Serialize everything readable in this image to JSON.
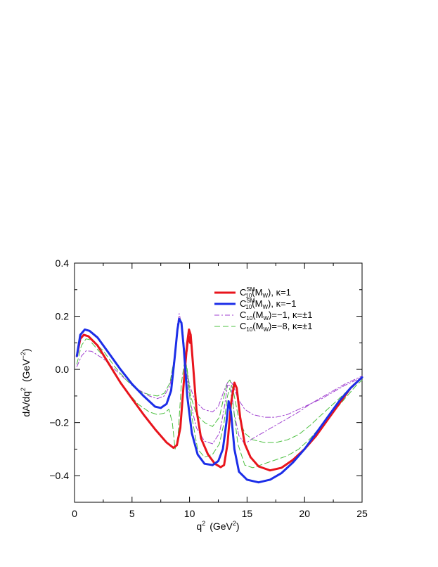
{
  "chart_data": {
    "type": "line",
    "xlabel": "q",
    "xlabel_sup": "2",
    "xlabel_unit": "(GeV",
    "xlabel_unit_sup": "2",
    "xlabel_unit_close": ")",
    "ylabel": "dA/dq",
    "ylabel_sup": "2",
    "ylabel_unit": "(GeV",
    "ylabel_unit_sup": "−2",
    "ylabel_unit_close": ")",
    "xlim": [
      0,
      25
    ],
    "ylim": [
      -0.5,
      0.4
    ],
    "x_ticks": [
      0,
      5,
      10,
      15,
      20,
      25
    ],
    "x_tick_labels": [
      "0",
      "5",
      "10",
      "15",
      "20",
      "25"
    ],
    "y_ticks": [
      -0.4,
      -0.2,
      0.0,
      0.2,
      0.4
    ],
    "y_tick_labels": [
      "−0.4",
      "−0.2",
      "0.0",
      "0.2",
      "0.4"
    ],
    "grid": false,
    "legend_position": "top-right",
    "legend": [
      {
        "base": "C",
        "sup": "SM",
        "sub": "10",
        "arg": "(M",
        "arg_sub": "W",
        "rest": "), κ=1"
      },
      {
        "base": "C",
        "sup": "SM",
        "sub": "10",
        "arg": "(M",
        "arg_sub": "W",
        "rest": "), κ=−1"
      },
      {
        "base": "C",
        "sup": "",
        "sub": "10",
        "arg": "(M",
        "arg_sub": "W",
        "rest": ")=−1, κ=±1"
      },
      {
        "base": "C",
        "sup": "",
        "sub": "10",
        "arg": "(M",
        "arg_sub": "W",
        "rest": ")=−8, κ=±1"
      }
    ],
    "series": [
      {
        "color": "#e8141c",
        "width": 3,
        "dash": "",
        "points": [
          [
            0.2,
            0.05
          ],
          [
            0.5,
            0.115
          ],
          [
            0.8,
            0.13
          ],
          [
            1.2,
            0.125
          ],
          [
            2,
            0.09
          ],
          [
            3,
            0.02
          ],
          [
            4,
            -0.05
          ],
          [
            5,
            -0.11
          ],
          [
            6,
            -0.17
          ],
          [
            7,
            -0.225
          ],
          [
            8,
            -0.275
          ],
          [
            8.6,
            -0.295
          ],
          [
            8.9,
            -0.285
          ],
          [
            9.2,
            -0.22
          ],
          [
            9.5,
            -0.05
          ],
          [
            9.8,
            0.1
          ],
          [
            9.95,
            0.15
          ],
          [
            10.1,
            0.13
          ],
          [
            10.3,
            0.02
          ],
          [
            10.6,
            -0.15
          ],
          [
            11,
            -0.26
          ],
          [
            11.6,
            -0.32
          ],
          [
            12.2,
            -0.355
          ],
          [
            12.7,
            -0.368
          ],
          [
            13,
            -0.36
          ],
          [
            13.3,
            -0.28
          ],
          [
            13.6,
            -0.13
          ],
          [
            13.9,
            -0.05
          ],
          [
            14.1,
            -0.07
          ],
          [
            14.4,
            -0.18
          ],
          [
            14.8,
            -0.28
          ],
          [
            15.3,
            -0.33
          ],
          [
            16,
            -0.365
          ],
          [
            17,
            -0.38
          ],
          [
            18,
            -0.37
          ],
          [
            19,
            -0.34
          ],
          [
            20,
            -0.3
          ],
          [
            21,
            -0.25
          ],
          [
            22,
            -0.19
          ],
          [
            23,
            -0.13
          ],
          [
            24,
            -0.07
          ],
          [
            25,
            -0.03
          ]
        ]
      },
      {
        "color": "#e8141c",
        "width": 3,
        "dash": "",
        "points": [
          [
            9.75,
            0.07
          ],
          [
            9.9,
            0.13
          ],
          [
            10.05,
            0.1
          ]
        ]
      },
      {
        "color": "#1c2ee8",
        "width": 3,
        "dash": "",
        "points": [
          [
            0.2,
            0.05
          ],
          [
            0.5,
            0.13
          ],
          [
            0.9,
            0.15
          ],
          [
            1.3,
            0.145
          ],
          [
            2,
            0.12
          ],
          [
            3,
            0.06
          ],
          [
            4,
            0.0
          ],
          [
            5,
            -0.055
          ],
          [
            6,
            -0.1
          ],
          [
            7,
            -0.14
          ],
          [
            7.5,
            -0.145
          ],
          [
            8,
            -0.13
          ],
          [
            8.4,
            -0.08
          ],
          [
            8.7,
            0.04
          ],
          [
            8.95,
            0.15
          ],
          [
            9.1,
            0.19
          ],
          [
            9.3,
            0.175
          ],
          [
            9.5,
            0.08
          ],
          [
            9.8,
            -0.1
          ],
          [
            10.2,
            -0.24
          ],
          [
            10.7,
            -0.32
          ],
          [
            11.3,
            -0.355
          ],
          [
            12,
            -0.36
          ],
          [
            12.5,
            -0.345
          ],
          [
            12.9,
            -0.3
          ],
          [
            13.2,
            -0.2
          ],
          [
            13.4,
            -0.12
          ],
          [
            13.6,
            -0.16
          ],
          [
            13.9,
            -0.3
          ],
          [
            14.3,
            -0.385
          ],
          [
            15,
            -0.415
          ],
          [
            16,
            -0.425
          ],
          [
            17,
            -0.415
          ],
          [
            18,
            -0.39
          ],
          [
            19,
            -0.35
          ],
          [
            20,
            -0.3
          ],
          [
            21,
            -0.24
          ],
          [
            22,
            -0.18
          ],
          [
            23,
            -0.12
          ],
          [
            24,
            -0.07
          ],
          [
            25,
            -0.03
          ]
        ]
      },
      {
        "color": "#a040d0",
        "width": 1,
        "dash": "7,3,2,3",
        "points": [
          [
            0.2,
            0.01
          ],
          [
            0.6,
            0.05
          ],
          [
            1,
            0.07
          ],
          [
            1.5,
            0.068
          ],
          [
            2.5,
            0.04
          ],
          [
            3.5,
            0.0
          ],
          [
            4.5,
            -0.04
          ],
          [
            5.5,
            -0.075
          ],
          [
            6.5,
            -0.1
          ],
          [
            7.2,
            -0.11
          ],
          [
            7.8,
            -0.1
          ],
          [
            8.3,
            -0.06
          ],
          [
            8.7,
            0.05
          ],
          [
            8.95,
            0.17
          ],
          [
            9.1,
            0.21
          ],
          [
            9.3,
            0.17
          ],
          [
            9.6,
            0.05
          ],
          [
            10,
            -0.06
          ],
          [
            10.5,
            -0.12
          ],
          [
            11.2,
            -0.15
          ],
          [
            12,
            -0.16
          ],
          [
            12.5,
            -0.14
          ],
          [
            13,
            -0.08
          ],
          [
            13.3,
            -0.05
          ],
          [
            13.5,
            -0.04
          ],
          [
            13.8,
            -0.06
          ],
          [
            14.2,
            -0.11
          ],
          [
            14.8,
            -0.15
          ],
          [
            15.5,
            -0.17
          ],
          [
            16.5,
            -0.18
          ],
          [
            17.5,
            -0.18
          ],
          [
            18.5,
            -0.17
          ],
          [
            19.5,
            -0.15
          ],
          [
            20.5,
            -0.13
          ],
          [
            21.5,
            -0.11
          ],
          [
            22.5,
            -0.085
          ],
          [
            23.5,
            -0.06
          ],
          [
            24.5,
            -0.04
          ],
          [
            25,
            -0.03
          ]
        ]
      },
      {
        "color": "#a040d0",
        "width": 1,
        "dash": "7,3,2,3",
        "points": [
          [
            9.4,
            0.1
          ],
          [
            9.7,
            0.0
          ],
          [
            10.1,
            -0.13
          ],
          [
            10.6,
            -0.22
          ],
          [
            11.3,
            -0.27
          ],
          [
            12,
            -0.28
          ],
          [
            12.6,
            -0.24
          ],
          [
            13,
            -0.15
          ],
          [
            13.3,
            -0.06
          ],
          [
            13.6,
            -0.06
          ],
          [
            13.9,
            -0.17
          ],
          [
            14.3,
            -0.25
          ],
          [
            14.8,
            -0.28
          ],
          [
            15.5,
            -0.26
          ],
          [
            16.5,
            -0.235
          ],
          [
            17.5,
            -0.21
          ],
          [
            18.5,
            -0.185
          ],
          [
            19.5,
            -0.16
          ],
          [
            20.5,
            -0.13
          ],
          [
            21.5,
            -0.105
          ],
          [
            22.5,
            -0.08
          ],
          [
            23.5,
            -0.055
          ],
          [
            24.5,
            -0.035
          ],
          [
            25,
            -0.025
          ]
        ]
      },
      {
        "color": "#4cc040",
        "width": 1,
        "dash": "8,4",
        "points": [
          [
            0.2,
            0.02
          ],
          [
            0.6,
            0.09
          ],
          [
            1,
            0.115
          ],
          [
            1.5,
            0.11
          ],
          [
            2.5,
            0.07
          ],
          [
            3.5,
            0.01
          ],
          [
            4.5,
            -0.04
          ],
          [
            5.5,
            -0.08
          ],
          [
            6.5,
            -0.095
          ],
          [
            7.2,
            -0.1
          ],
          [
            7.8,
            -0.09
          ],
          [
            8.3,
            -0.05
          ],
          [
            8.7,
            0.05
          ],
          [
            9,
            0.17
          ],
          [
            9.2,
            0.19
          ],
          [
            9.4,
            0.15
          ],
          [
            9.7,
            0.02
          ],
          [
            10.1,
            -0.1
          ],
          [
            10.6,
            -0.17
          ],
          [
            11.3,
            -0.2
          ],
          [
            12,
            -0.215
          ],
          [
            12.6,
            -0.18
          ],
          [
            13,
            -0.1
          ],
          [
            13.3,
            -0.05
          ],
          [
            13.5,
            -0.04
          ],
          [
            13.8,
            -0.08
          ],
          [
            14.2,
            -0.17
          ],
          [
            14.8,
            -0.24
          ],
          [
            15.5,
            -0.265
          ],
          [
            16.5,
            -0.275
          ],
          [
            17.5,
            -0.275
          ],
          [
            18.5,
            -0.265
          ],
          [
            19.5,
            -0.245
          ],
          [
            20.5,
            -0.21
          ],
          [
            21.5,
            -0.17
          ],
          [
            22.5,
            -0.13
          ],
          [
            23.5,
            -0.09
          ],
          [
            24.5,
            -0.05
          ],
          [
            25,
            -0.035
          ]
        ]
      },
      {
        "color": "#4cc040",
        "width": 1,
        "dash": "8,4",
        "points": [
          [
            1.5,
            0.1
          ],
          [
            2.5,
            0.05
          ],
          [
            3.5,
            -0.02
          ],
          [
            4.5,
            -0.08
          ],
          [
            5.5,
            -0.13
          ],
          [
            6.5,
            -0.16
          ],
          [
            7.2,
            -0.17
          ],
          [
            7.8,
            -0.165
          ],
          [
            8.2,
            -0.15
          ],
          [
            8.5,
            -0.2
          ],
          [
            8.75,
            -0.3
          ],
          [
            9,
            -0.25
          ],
          [
            9.3,
            -0.05
          ],
          [
            9.6,
            0.04
          ],
          [
            9.8,
            0.0
          ],
          [
            10.2,
            -0.18
          ],
          [
            10.7,
            -0.3
          ],
          [
            11.3,
            -0.33
          ],
          [
            12,
            -0.32
          ],
          [
            12.6,
            -0.28
          ],
          [
            13,
            -0.2
          ],
          [
            13.3,
            -0.1
          ],
          [
            13.5,
            -0.07
          ],
          [
            13.8,
            -0.14
          ],
          [
            14.2,
            -0.28
          ],
          [
            14.8,
            -0.36
          ],
          [
            15.5,
            -0.37
          ],
          [
            16.5,
            -0.355
          ],
          [
            17.5,
            -0.34
          ],
          [
            18.5,
            -0.325
          ],
          [
            19.5,
            -0.3
          ],
          [
            20.5,
            -0.26
          ],
          [
            21.5,
            -0.21
          ],
          [
            22.5,
            -0.16
          ],
          [
            23.5,
            -0.11
          ],
          [
            24.5,
            -0.06
          ],
          [
            25,
            -0.04
          ]
        ]
      }
    ]
  }
}
